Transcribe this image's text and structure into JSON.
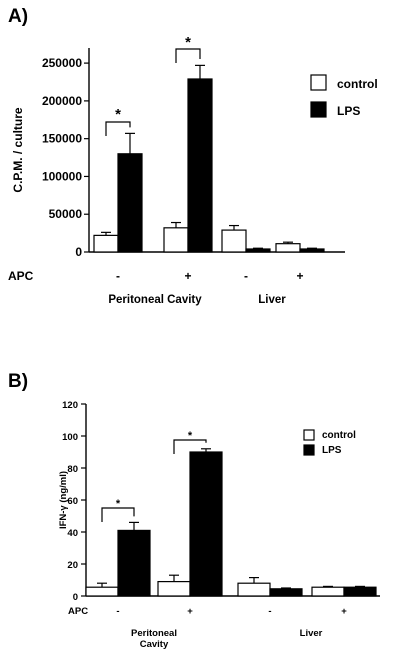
{
  "chart_data": [
    {
      "panel_label": "A)",
      "type": "bar",
      "ylabel": "C.P.M. / culture",
      "ylim": [
        0,
        250000
      ],
      "yticks": [
        0,
        50000,
        100000,
        150000,
        200000,
        250000
      ],
      "ytick_labels": [
        "0",
        "50000",
        "100000",
        "150000",
        "200000",
        "250000"
      ],
      "apc_row_label": "APC",
      "categories": [
        "-",
        "+",
        "-",
        "+"
      ],
      "groups": [
        "Peritoneal Cavity",
        "Liver"
      ],
      "legend_position": "top-right",
      "series": [
        {
          "name": "control",
          "color": "#ffffff",
          "values": [
            22000,
            32000,
            29000,
            11000
          ],
          "errors": [
            4000,
            7000,
            6000,
            2000
          ]
        },
        {
          "name": "LPS",
          "color": "#000000",
          "values": [
            130000,
            229000,
            4000,
            4000
          ],
          "errors": [
            27000,
            18000,
            1000,
            1000
          ]
        }
      ],
      "significance": [
        "*",
        "*"
      ]
    },
    {
      "panel_label": "B)",
      "type": "bar",
      "ylabel": "IFN-γ (ng/ml)",
      "ylim": [
        0,
        120
      ],
      "yticks": [
        0,
        20,
        40,
        60,
        80,
        100,
        120
      ],
      "ytick_labels": [
        "0",
        "20",
        "40",
        "60",
        "80",
        "100",
        "120"
      ],
      "apc_row_label": "APC",
      "categories": [
        "-",
        "+",
        "-",
        "+"
      ],
      "groups": [
        "Peritoneal Cavity",
        "Liver"
      ],
      "legend_position": "top-right",
      "series": [
        {
          "name": "control",
          "color": "#ffffff",
          "values": [
            5.5,
            9,
            8,
            5.5
          ],
          "errors": [
            2.5,
            4,
            3.5,
            0.5
          ]
        },
        {
          "name": "LPS",
          "color": "#000000",
          "values": [
            41,
            90,
            4.5,
            5.5
          ],
          "errors": [
            5,
            2,
            0.5,
            0.5
          ]
        }
      ],
      "significance": [
        "*",
        "*"
      ]
    }
  ]
}
